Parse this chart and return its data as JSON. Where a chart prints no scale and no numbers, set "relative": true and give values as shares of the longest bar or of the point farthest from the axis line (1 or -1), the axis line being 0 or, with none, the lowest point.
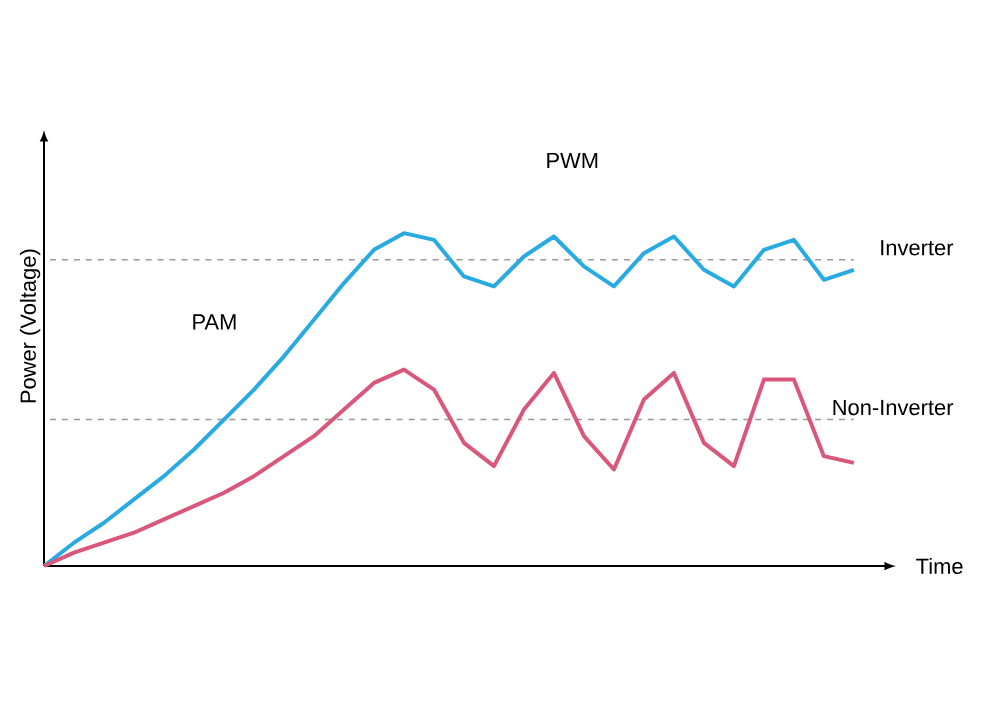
{
  "chart_data": {
    "type": "line",
    "relative": true,
    "xlabel": "Time",
    "ylabel": "Power (Voltage)",
    "categories": [
      null,
      null,
      null,
      null,
      null,
      null,
      null,
      null,
      null,
      null,
      null,
      null,
      null,
      null,
      null,
      null,
      null,
      null,
      null,
      null,
      null,
      null,
      null,
      null,
      null,
      null,
      null,
      null
    ],
    "series": [
      {
        "color": "#29abe2",
        "values": [
          0,
          0.07,
          0.13,
          0.2,
          0.27,
          0.35,
          0.44,
          0.53,
          0.63,
          0.74,
          0.85,
          0.95,
          1.0,
          0.98,
          0.87,
          0.84,
          0.93,
          0.99,
          0.9,
          0.84,
          0.94,
          0.99,
          0.89,
          0.84,
          0.95,
          0.98,
          0.86,
          0.89
        ]
      },
      {
        "color": "#d9577a",
        "values": [
          0,
          0.04,
          0.07,
          0.1,
          0.14,
          0.18,
          0.22,
          0.27,
          0.33,
          0.39,
          0.47,
          0.55,
          0.59,
          0.53,
          0.37,
          0.3,
          0.47,
          0.58,
          0.39,
          0.29,
          0.5,
          0.58,
          0.37,
          0.3,
          0.56,
          0.56,
          0.33,
          0.31
        ]
      }
    ],
    "ref_lines": [
      {
        "axis": "y",
        "value": 0.92,
        "label": "Inverter",
        "color": "#999999",
        "line_style": "dashed"
      },
      {
        "axis": "y",
        "value": 0.44,
        "label": "Non-Inverter",
        "color": "#999999",
        "line_style": "dashed"
      }
    ],
    "annotations": [
      "PWM",
      "PAM"
    ]
  }
}
